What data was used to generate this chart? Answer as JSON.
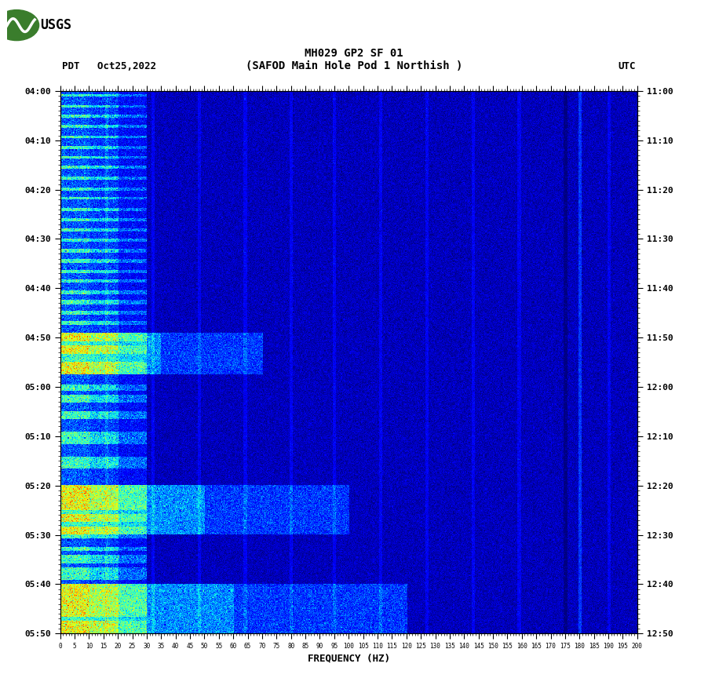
{
  "title_line1": "MH029 GP2 SF 01",
  "title_line2": "(SAFOD Main Hole Pod 1 Northish )",
  "left_label": "PDT   Oct25,2022",
  "right_label": "UTC",
  "xlabel": "FREQUENCY (HZ)",
  "freq_min": 0,
  "freq_max": 200,
  "background_color": "#ffffff",
  "spectrogram_rows": 660,
  "spectrogram_cols": 700,
  "left_time_labels": [
    "04:00",
    "04:10",
    "04:20",
    "04:30",
    "04:40",
    "04:50",
    "05:00",
    "05:10",
    "05:20",
    "05:30",
    "05:40",
    "05:50"
  ],
  "right_time_labels": [
    "11:00",
    "11:10",
    "11:20",
    "11:30",
    "11:40",
    "11:50",
    "12:00",
    "12:10",
    "12:20",
    "12:30",
    "12:40",
    "12:50"
  ],
  "freq_tick_labels": [
    "0",
    "5",
    "10",
    "15",
    "20",
    "25",
    "30",
    "35",
    "40",
    "45",
    "50",
    "55",
    "60",
    "65",
    "70",
    "75",
    "80",
    "85",
    "90",
    "95",
    "100",
    "105",
    "110",
    "115",
    "120",
    "125",
    "130",
    "135",
    "140",
    "145",
    "150",
    "155",
    "160",
    "165",
    "170",
    "175",
    "180",
    "185",
    "190",
    "195",
    "200"
  ]
}
